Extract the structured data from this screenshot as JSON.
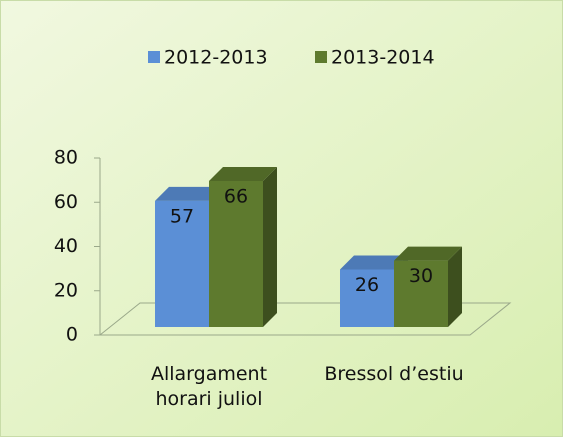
{
  "chart_data": {
    "type": "bar3d",
    "categories": [
      "Allargament horari juliol",
      "Bressol d’estiu"
    ],
    "series": [
      {
        "name": "2012-2013",
        "color": "#5b8fd6",
        "values": [
          57,
          26
        ]
      },
      {
        "name": "2013-2014",
        "color": "#5e7a2e",
        "values": [
          66,
          30
        ]
      }
    ],
    "ylim": [
      0,
      80
    ],
    "yticks": [
      0,
      20,
      40,
      60,
      80
    ],
    "legend": "top"
  }
}
